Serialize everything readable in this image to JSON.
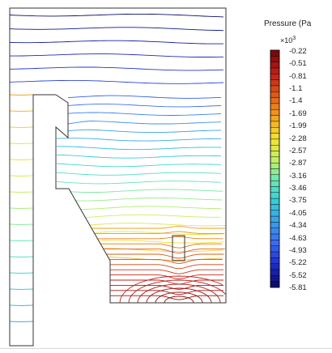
{
  "chart_data": {
    "type": "contour",
    "quantity_label": "Pressure (Pa",
    "scale_base": "×10",
    "scale_exp": "3",
    "colorbar_ticks": [
      "-0.22",
      "-0.51",
      "-0.81",
      "-1.1",
      "-1.4",
      "-1.69",
      "-1.99",
      "-2.28",
      "-2.57",
      "-2.87",
      "-3.16",
      "-3.46",
      "-3.75",
      "-4.05",
      "-4.34",
      "-4.63",
      "-4.93",
      "-5.22",
      "-5.52",
      "-5.81"
    ],
    "colorbar_range": [
      -5.81,
      -0.22
    ],
    "colormap": [
      "#0d0d6e",
      "#1f2fd0",
      "#3b6ef0",
      "#3aa0e8",
      "#35d0d8",
      "#6fe8b0",
      "#c8f060",
      "#f5e030",
      "#f0a020",
      "#e05a18",
      "#c0201a",
      "#7a0a0a"
    ]
  }
}
